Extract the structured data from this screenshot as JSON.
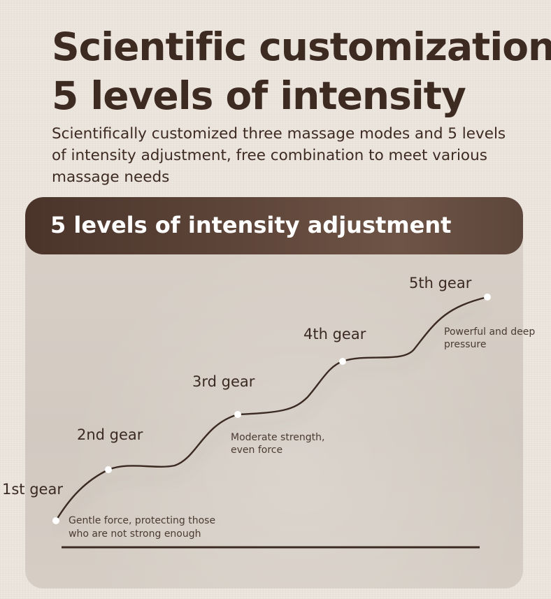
{
  "header": {
    "title_line1": "Scientific customization",
    "title_line2": "5 levels of intensity",
    "subtitle": "Scientifically customized three massage modes and 5 levels of intensity adjustment, free combination to meet various massage needs"
  },
  "panel": {
    "banner_title": "5 levels of intensity adjustment"
  },
  "gears": [
    {
      "label": "1st gear",
      "description_lines": [
        "Gentle force, protecting those",
        "who are not strong enough"
      ]
    },
    {
      "label": "2nd gear",
      "description_lines": []
    },
    {
      "label": "3rd gear",
      "description_lines": [
        "Moderate strength,",
        "even force"
      ]
    },
    {
      "label": "4th gear",
      "description_lines": []
    },
    {
      "label": "5th gear",
      "description_lines": [
        "Powerful and deep",
        "pressure"
      ]
    }
  ],
  "colors": {
    "background": "#ece6df",
    "panel": "#d5cdc4",
    "banner": "#5a4236",
    "text": "#3d2b22",
    "curve": "#3b2a22",
    "dot": "#ffffff"
  }
}
